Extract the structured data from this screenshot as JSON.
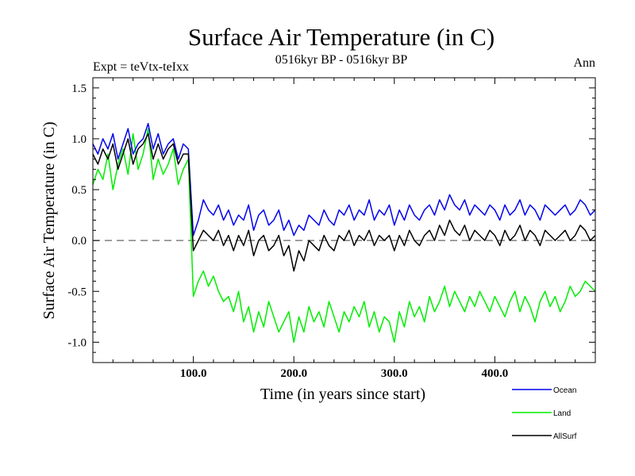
{
  "chart_data": {
    "type": "line",
    "title": "Surface Air Temperature (in C)",
    "subtitle": "0516kyr BP - 0516kyr BP",
    "expt_label": "Expt = teVtx-teIxx",
    "season_label": "Ann",
    "xlabel": "Time (in years since start)",
    "ylabel": "Surface Air Temperature (in C)",
    "xlim": [
      0,
      500
    ],
    "ylim": [
      -1.2,
      1.6
    ],
    "x_ticks": [
      {
        "value": 100,
        "label": "100.0"
      },
      {
        "value": 200,
        "label": "200.0"
      },
      {
        "value": 300,
        "label": "300.0"
      },
      {
        "value": 400,
        "label": "400.0"
      }
    ],
    "y_ticks": [
      {
        "value": 1.5,
        "label": "1.5"
      },
      {
        "value": 1.0,
        "label": "1.0"
      },
      {
        "value": 0.5,
        "label": "0.5"
      },
      {
        "value": 0.0,
        "label": "0.0"
      },
      {
        "value": -0.5,
        "label": "-0.5"
      },
      {
        "value": -1.0,
        "label": "-1.0"
      }
    ],
    "zero_line": 0.0,
    "x": [
      0,
      5,
      10,
      15,
      20,
      25,
      30,
      35,
      40,
      45,
      50,
      55,
      60,
      65,
      70,
      75,
      80,
      85,
      90,
      95,
      100,
      105,
      110,
      115,
      120,
      125,
      130,
      135,
      140,
      145,
      150,
      155,
      160,
      165,
      170,
      175,
      180,
      185,
      190,
      195,
      200,
      205,
      210,
      215,
      220,
      225,
      230,
      235,
      240,
      245,
      250,
      255,
      260,
      265,
      270,
      275,
      280,
      285,
      290,
      295,
      300,
      305,
      310,
      315,
      320,
      325,
      330,
      335,
      340,
      345,
      350,
      355,
      360,
      365,
      370,
      375,
      380,
      385,
      390,
      395,
      400,
      405,
      410,
      415,
      420,
      425,
      430,
      435,
      440,
      445,
      450,
      455,
      460,
      465,
      470,
      475,
      480,
      485,
      490,
      495,
      500
    ],
    "series": [
      {
        "name": "Ocean",
        "color": "#0000ee",
        "values": [
          0.95,
          0.85,
          1.0,
          0.9,
          1.05,
          0.8,
          0.95,
          1.1,
          0.85,
          0.95,
          1.0,
          1.15,
          0.9,
          1.05,
          0.85,
          0.95,
          1.0,
          0.8,
          0.95,
          0.9,
          0.05,
          0.2,
          0.4,
          0.3,
          0.25,
          0.35,
          0.2,
          0.3,
          0.15,
          0.25,
          0.2,
          0.35,
          0.1,
          0.25,
          0.3,
          0.15,
          0.2,
          0.3,
          0.1,
          0.2,
          0.05,
          0.15,
          0.1,
          0.25,
          0.2,
          0.15,
          0.3,
          0.2,
          0.15,
          0.3,
          0.25,
          0.35,
          0.2,
          0.3,
          0.25,
          0.4,
          0.2,
          0.3,
          0.25,
          0.35,
          0.15,
          0.3,
          0.2,
          0.35,
          0.25,
          0.2,
          0.3,
          0.35,
          0.25,
          0.4,
          0.3,
          0.45,
          0.35,
          0.3,
          0.4,
          0.25,
          0.35,
          0.3,
          0.25,
          0.35,
          0.3,
          0.2,
          0.35,
          0.25,
          0.3,
          0.4,
          0.25,
          0.35,
          0.3,
          0.2,
          0.35,
          0.3,
          0.25,
          0.3,
          0.35,
          0.25,
          0.3,
          0.4,
          0.35,
          0.25,
          0.3
        ]
      },
      {
        "name": "Land",
        "color": "#00ee00",
        "values": [
          0.55,
          0.7,
          0.6,
          0.85,
          0.5,
          0.75,
          0.9,
          0.65,
          1.05,
          0.7,
          0.85,
          1.1,
          0.6,
          0.8,
          0.65,
          0.75,
          0.9,
          0.55,
          0.7,
          0.8,
          -0.55,
          -0.4,
          -0.3,
          -0.45,
          -0.35,
          -0.5,
          -0.6,
          -0.55,
          -0.7,
          -0.5,
          -0.8,
          -0.65,
          -0.9,
          -0.7,
          -0.85,
          -0.6,
          -0.75,
          -0.9,
          -0.8,
          -0.7,
          -1.0,
          -0.75,
          -0.9,
          -0.65,
          -0.8,
          -0.7,
          -0.85,
          -0.6,
          -0.75,
          -0.9,
          -0.7,
          -0.8,
          -0.65,
          -0.75,
          -0.6,
          -0.85,
          -0.7,
          -0.9,
          -0.75,
          -0.8,
          -1.0,
          -0.7,
          -0.85,
          -0.6,
          -0.75,
          -0.65,
          -0.8,
          -0.55,
          -0.7,
          -0.6,
          -0.45,
          -0.65,
          -0.5,
          -0.6,
          -0.7,
          -0.55,
          -0.65,
          -0.5,
          -0.6,
          -0.7,
          -0.55,
          -0.65,
          -0.75,
          -0.6,
          -0.5,
          -0.7,
          -0.55,
          -0.65,
          -0.8,
          -0.6,
          -0.5,
          -0.65,
          -0.55,
          -0.7,
          -0.6,
          -0.45,
          -0.55,
          -0.5,
          -0.4,
          -0.45,
          -0.5
        ]
      },
      {
        "name": "AllSurf",
        "color": "#000000",
        "values": [
          0.85,
          0.75,
          0.9,
          0.8,
          0.95,
          0.7,
          0.85,
          1.0,
          0.75,
          0.9,
          0.95,
          1.05,
          0.8,
          0.95,
          0.8,
          0.9,
          0.95,
          0.75,
          0.85,
          0.85,
          -0.1,
          0.0,
          0.1,
          0.05,
          0.0,
          0.1,
          -0.05,
          0.05,
          -0.1,
          0.05,
          -0.05,
          0.1,
          -0.15,
          0.0,
          0.05,
          -0.1,
          -0.05,
          0.05,
          -0.15,
          -0.05,
          -0.3,
          -0.1,
          -0.2,
          0.0,
          -0.05,
          -0.1,
          0.05,
          -0.05,
          -0.1,
          0.05,
          0.0,
          0.1,
          -0.05,
          0.05,
          0.0,
          0.1,
          -0.05,
          0.05,
          0.0,
          0.05,
          -0.1,
          0.05,
          -0.05,
          0.1,
          0.0,
          -0.05,
          0.05,
          0.1,
          0.0,
          0.15,
          0.05,
          0.2,
          0.1,
          0.05,
          0.15,
          0.0,
          0.1,
          0.05,
          0.0,
          0.1,
          0.05,
          -0.05,
          0.1,
          0.0,
          0.05,
          0.15,
          0.0,
          0.1,
          0.05,
          -0.05,
          0.1,
          0.05,
          0.0,
          0.05,
          0.1,
          0.0,
          0.05,
          0.15,
          0.1,
          0.0,
          0.05
        ]
      }
    ]
  }
}
